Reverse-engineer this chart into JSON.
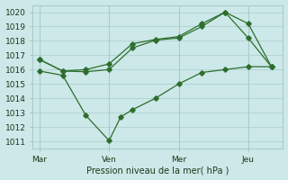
{
  "title": "Pression niveau de la mer( hPa )",
  "background_color": "#cce8e8",
  "grid_color": "#aacccc",
  "line_color": "#2d6e2d",
  "ylim": [
    1010.5,
    1020.5
  ],
  "yticks": [
    1011,
    1012,
    1013,
    1014,
    1015,
    1016,
    1017,
    1018,
    1019,
    1020
  ],
  "xtick_labels": [
    "Mar",
    "Ven",
    "Mer",
    "Jeu"
  ],
  "xtick_positions": [
    0,
    3,
    6,
    9
  ],
  "xlim": [
    -0.3,
    10.5
  ],
  "line1_x": [
    0,
    1,
    2,
    3,
    4,
    5,
    6,
    7,
    8,
    9,
    10
  ],
  "line1_y": [
    1016.7,
    1015.9,
    1015.85,
    1016.0,
    1017.5,
    1018.05,
    1018.2,
    1019.0,
    1020.0,
    1018.2,
    1016.2
  ],
  "line2_x": [
    0,
    1,
    2,
    3,
    4,
    5,
    6,
    7,
    8,
    9,
    10
  ],
  "line2_y": [
    1016.7,
    1015.9,
    1016.0,
    1016.4,
    1017.8,
    1018.1,
    1018.3,
    1019.2,
    1020.0,
    1019.2,
    1016.2
  ],
  "line3_x": [
    0,
    1,
    2,
    3,
    3.5,
    4,
    5,
    6,
    7,
    8,
    9,
    10
  ],
  "line3_y": [
    1015.9,
    1015.6,
    1012.8,
    1011.05,
    1012.7,
    1013.2,
    1014.0,
    1015.0,
    1015.8,
    1016.0,
    1016.2,
    1016.2
  ]
}
